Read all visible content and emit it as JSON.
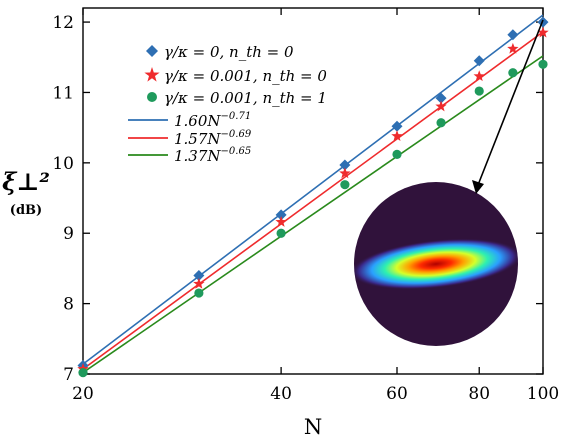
{
  "chart_data": {
    "type": "line",
    "x": [
      20,
      30,
      40,
      50,
      60,
      70,
      80,
      90,
      100
    ],
    "xlabel": "N",
    "ylabel": "ξ⊥²",
    "ylabel_unit": "(dB)",
    "xscale": "log",
    "xlim": [
      20,
      100
    ],
    "ylim": [
      7,
      12.2
    ],
    "x_ticks": [
      20,
      40,
      60,
      80,
      100
    ],
    "y_ticks": [
      7,
      8,
      9,
      10,
      11,
      12
    ],
    "legend_position": "top-left",
    "series": [
      {
        "name": "γ/κ = 0, n_th = 0",
        "marker": "diamond",
        "color": "#2e6fb3",
        "values": [
          7.12,
          8.4,
          9.26,
          9.97,
          10.52,
          10.92,
          11.45,
          11.82,
          12.0
        ]
      },
      {
        "name": "γ/κ = 0.001, n_th = 0",
        "marker": "star",
        "color": "#ef2b2d",
        "values": [
          7.07,
          8.28,
          9.16,
          9.85,
          10.38,
          10.8,
          11.23,
          11.62,
          11.85
        ]
      },
      {
        "name": "γ/κ = 0.001, n_th = 1",
        "marker": "circle",
        "color": "#1f9a5c",
        "values": [
          7.02,
          8.15,
          9.0,
          9.69,
          10.12,
          10.57,
          11.02,
          11.28,
          11.4
        ]
      }
    ],
    "fits": [
      {
        "label": "1.60N",
        "exponent": "−0.71",
        "color": "#2e6fb3",
        "y_at_20": 7.14,
        "y_at_100": 12.1
      },
      {
        "label": "1.57N",
        "exponent": "−0.69",
        "color": "#ef2b2d",
        "y_at_20": 7.07,
        "y_at_100": 11.86
      },
      {
        "label": "1.37N",
        "exponent": "−0.65",
        "color": "#2a8a1c",
        "y_at_20": 7.02,
        "y_at_100": 11.52
      }
    ],
    "inset": {
      "description_colors": [
        "#30123b",
        "#2d9cff",
        "#22e0c0",
        "#c7ff3b",
        "#ffb000",
        "#ff3a00",
        "#b00000"
      ]
    }
  }
}
